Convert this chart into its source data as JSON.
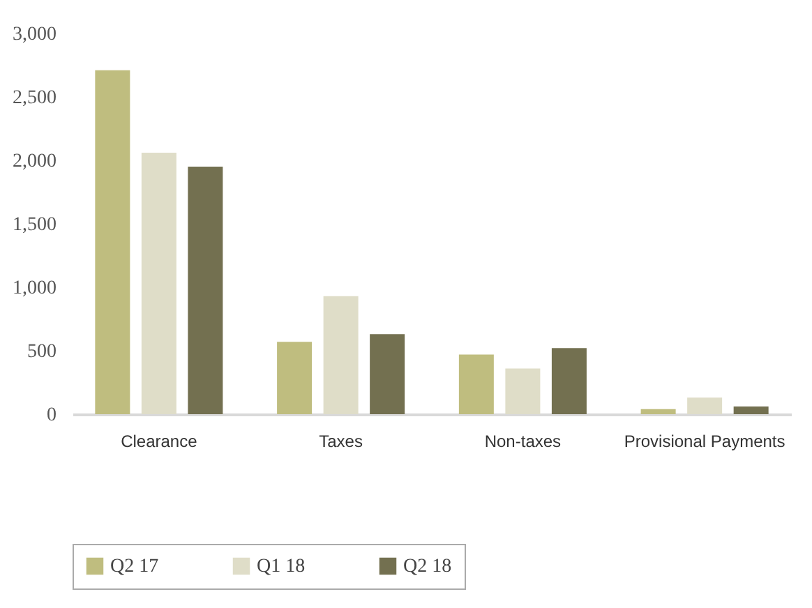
{
  "chart_data": {
    "type": "bar",
    "categories": [
      "Clearance",
      "Taxes",
      "Non-taxes",
      "Provisional Payments"
    ],
    "series": [
      {
        "name": "Q2 17",
        "color": "#bfbd7f",
        "values": [
          2710,
          570,
          470,
          40
        ]
      },
      {
        "name": "Q1 18",
        "color": "#dfddc8",
        "values": [
          2060,
          930,
          360,
          130
        ]
      },
      {
        "name": "Q2 18",
        "color": "#737050",
        "values": [
          1950,
          630,
          520,
          60
        ]
      }
    ],
    "ylim": [
      0,
      3000
    ],
    "yticks": [
      {
        "value": 0,
        "label": "0"
      },
      {
        "value": 500,
        "label": "500"
      },
      {
        "value": 1000,
        "label": "1,000"
      },
      {
        "value": 1500,
        "label": "1,500"
      },
      {
        "value": 2000,
        "label": "2,000"
      },
      {
        "value": 2500,
        "label": "2,500"
      },
      {
        "value": 3000,
        "label": "3,000"
      }
    ],
    "grid": false,
    "legend": "bottom"
  }
}
